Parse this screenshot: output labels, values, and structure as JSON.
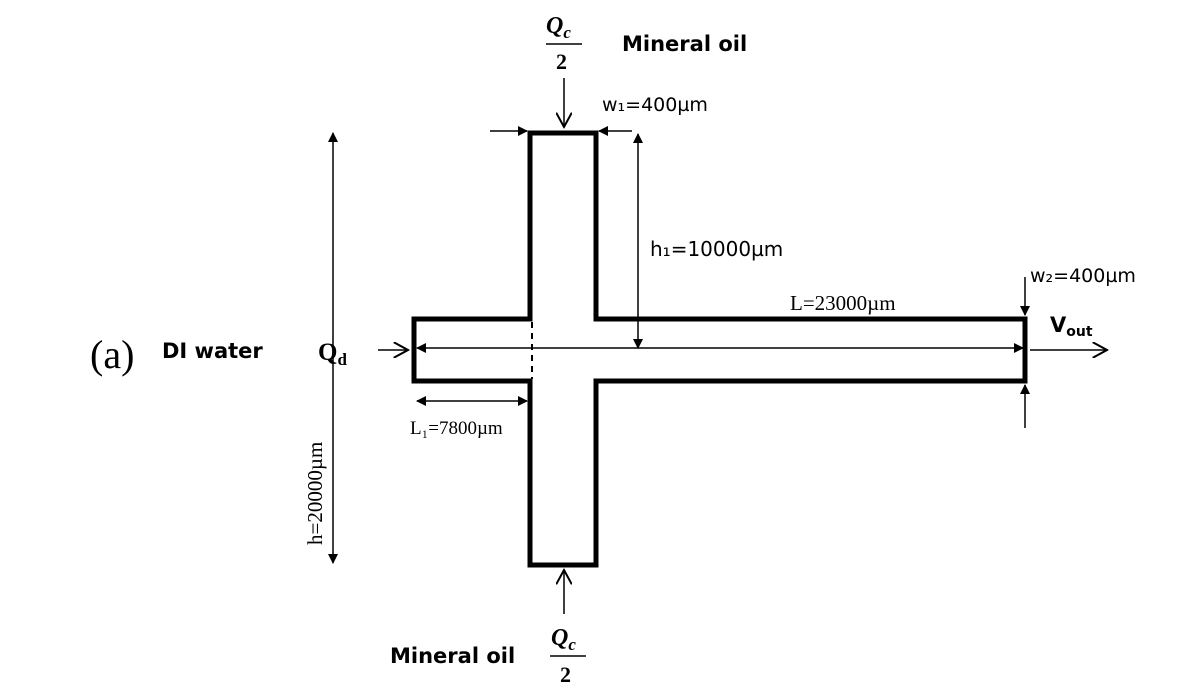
{
  "panel_label": "(a)",
  "inlets": {
    "dispersed_name": "DI water",
    "dispersed_flow": "Q",
    "dispersed_flow_sub": "d",
    "top_fluid": "Mineral oil",
    "bottom_fluid": "Mineral oil",
    "continuous_flow_numer": "Q",
    "continuous_flow_numer_sub": "c",
    "continuous_flow_denom": "2"
  },
  "outlet": {
    "velocity": "V",
    "velocity_sub": "out"
  },
  "dimensions": {
    "w1": "w₁=400µm",
    "w2": "w₂=400µm",
    "h1": "h₁=10000µm",
    "h": "h=20000µm",
    "L": "L=23000µm",
    "L1": "L₁=7800µm"
  },
  "colors": {
    "stroke": "#000000",
    "background": "#ffffff"
  }
}
